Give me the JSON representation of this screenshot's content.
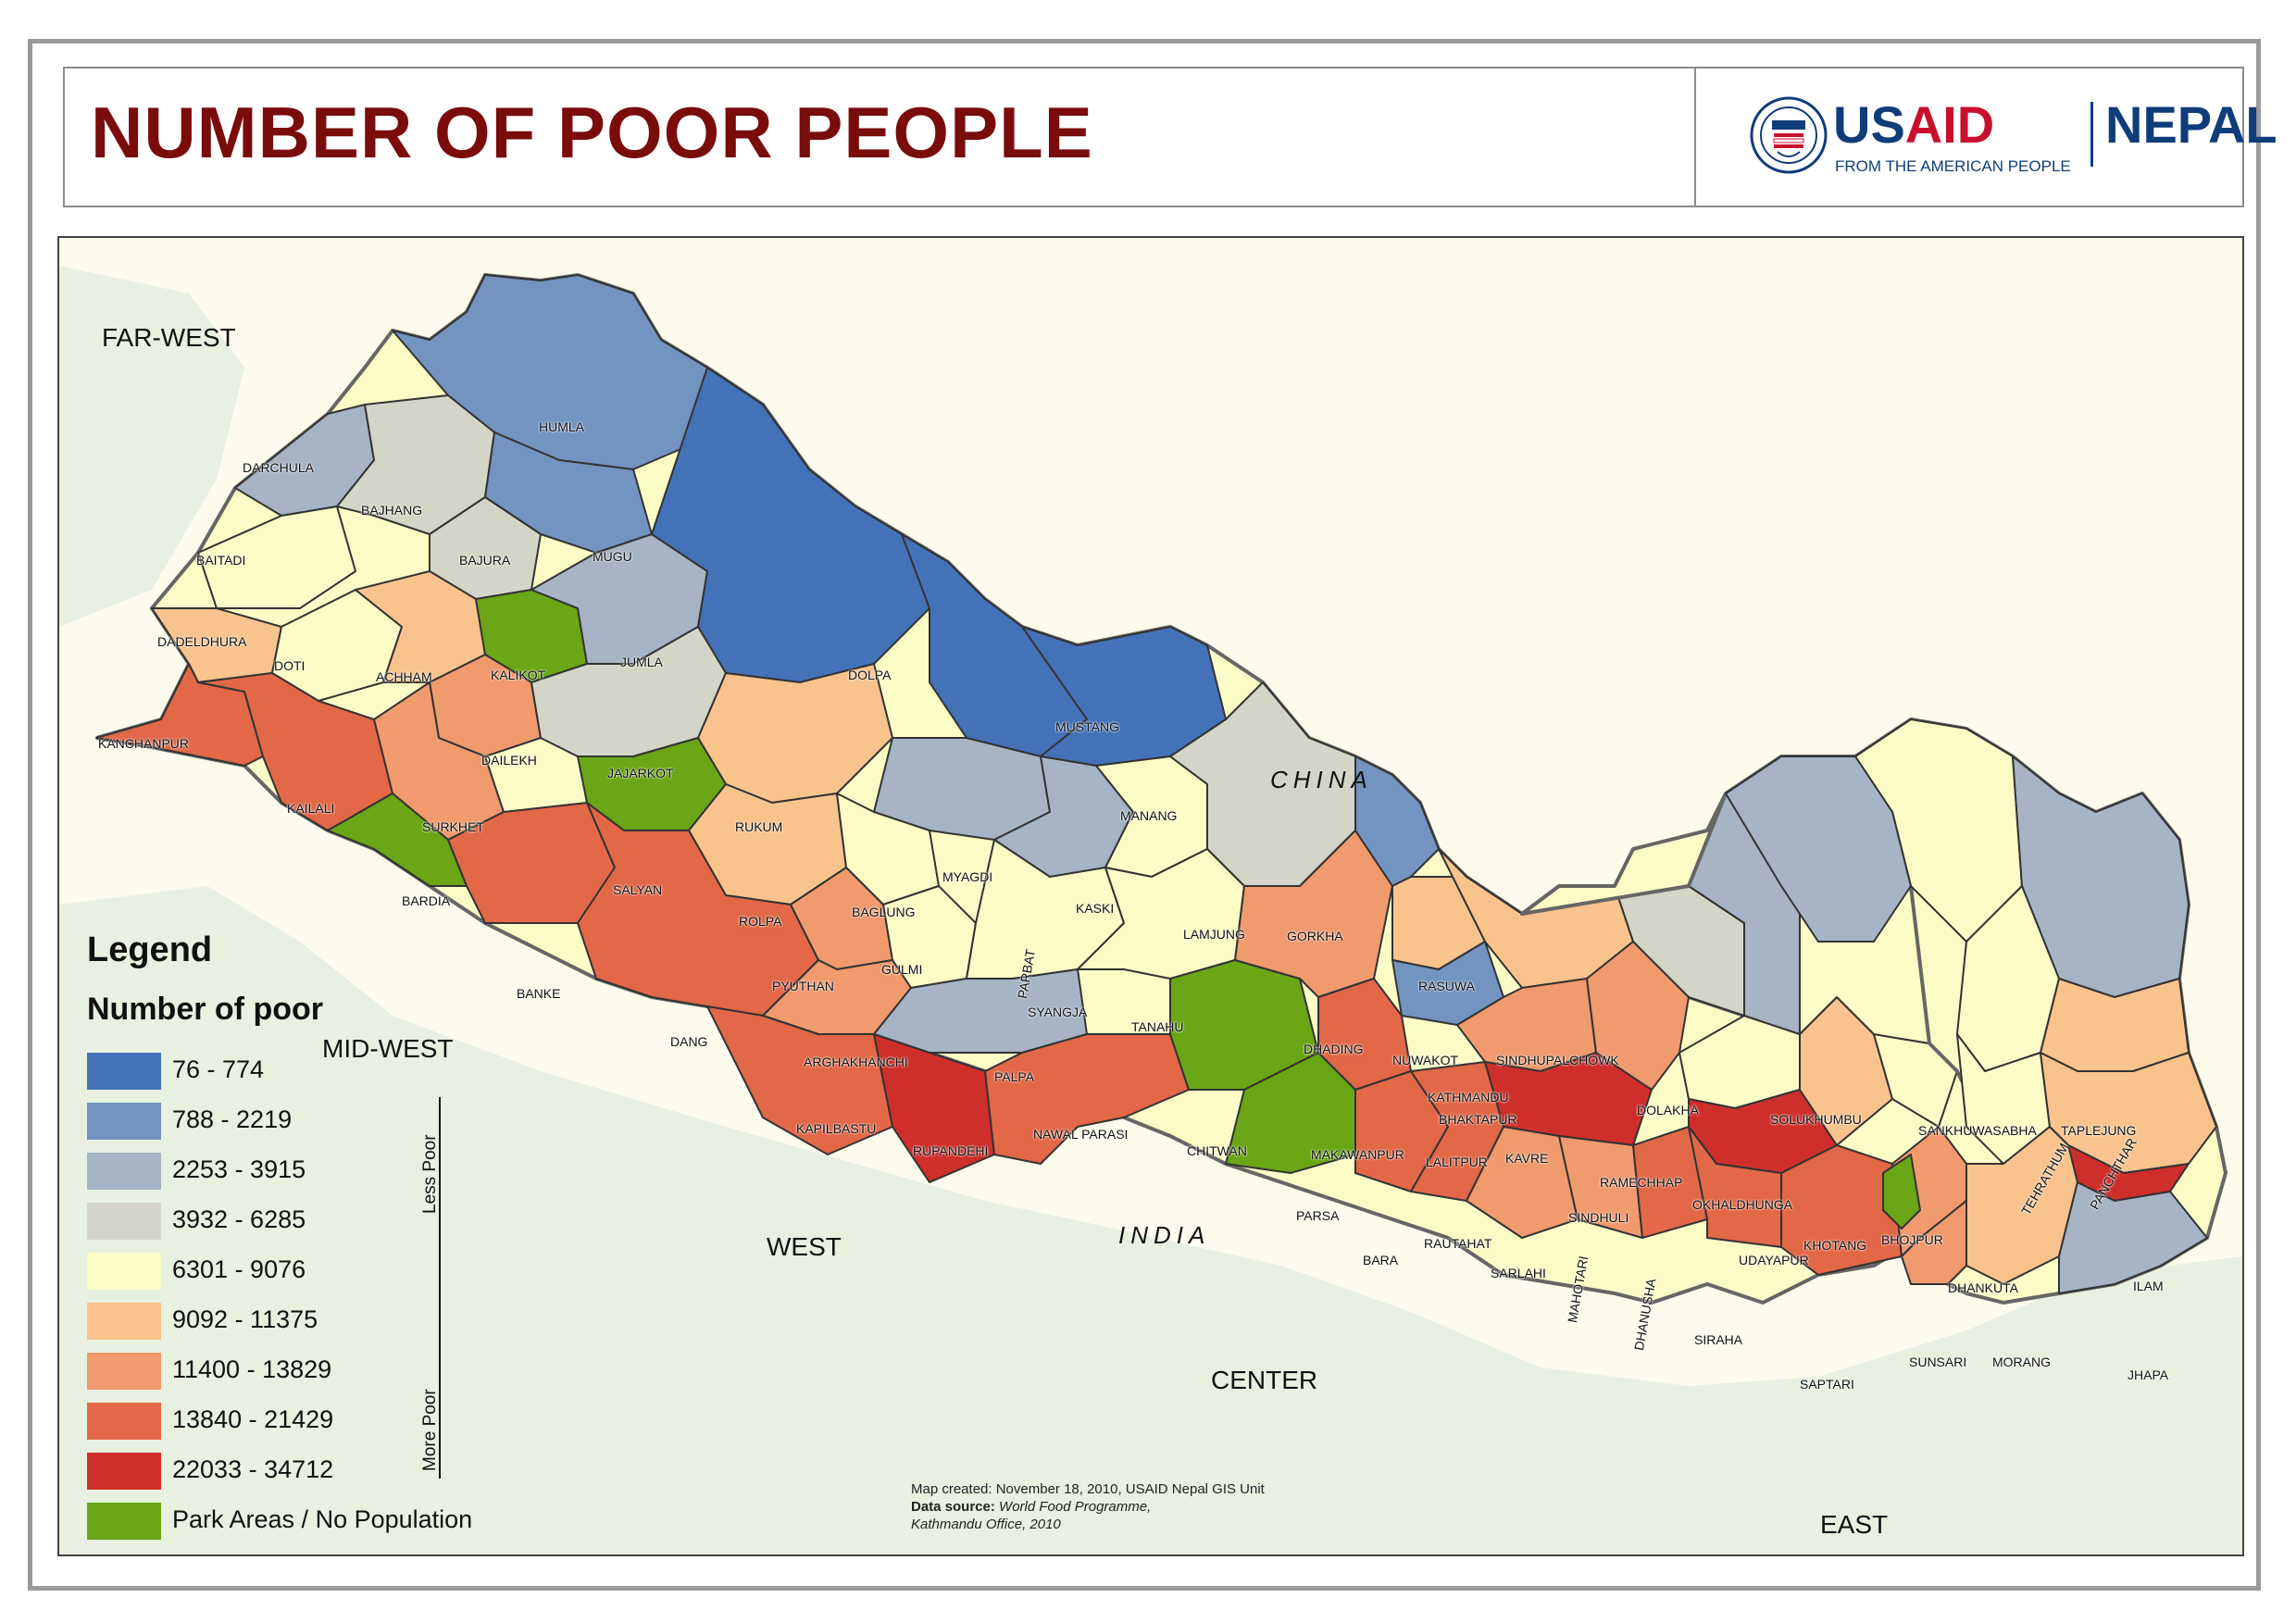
{
  "header": {
    "title": "NUMBER OF POOR PEOPLE",
    "logo_usaid_usa": "US",
    "logo_usaid_aid": "AID",
    "logo_tagline": "FROM THE AMERICAN PEOPLE",
    "logo_nepal": "NEPAL"
  },
  "regions": {
    "far_west": "FAR-WEST",
    "mid_west": "MID-WEST",
    "west": "WEST",
    "center": "CENTER",
    "east": "EAST"
  },
  "neighbors": {
    "china": "CHINA",
    "india": "INDIA"
  },
  "districts": [
    "HUMLA",
    "DARCHULA",
    "BAJHANG",
    "BAITADI",
    "BAJURA",
    "MUGU",
    "DADELDHURA",
    "DOTI",
    "ACHHAM",
    "KALIKOT",
    "JUMLA",
    "DOLPA",
    "MUSTANG",
    "KANCHANPUR",
    "KAILALI",
    "DAILEKH",
    "JAJARKOT",
    "SURKHET",
    "MANANG",
    "RUKUM",
    "BARDIA",
    "SALYAN",
    "MYAGDI",
    "ROLPA",
    "BAGLUNG",
    "KASKI",
    "LAMJUNG",
    "GORKHA",
    "BANKE",
    "GULMI",
    "PARBAT",
    "PYUTHAN",
    "RASUWA",
    "DANG",
    "SYANGJA",
    "TANAHU",
    "DHADING",
    "NUWAKOT",
    "SINDHUPALCHOWK",
    "ARGHAKHANCHI",
    "PALPA",
    "KATHMANDU",
    "BHAKTAPUR",
    "DOLAKHA",
    "SOLUKHUMBU",
    "SANKHUWASABHA",
    "TAPLEJUNG",
    "KAPILBASTU",
    "NAWAL PARASI",
    "RUPANDEHI",
    "CHITWAN",
    "MAKAWANPUR",
    "LALITPUR",
    "KAVRE",
    "RAMECHHAP",
    "PARSA",
    "SINDHULI",
    "OKHALDHUNGA",
    "TEHRATHUM",
    "PANCHTHAR",
    "BARA",
    "RAUTAHAT",
    "SARLAHI",
    "KHOTANG",
    "BHOJPUR",
    "MAHOTARI",
    "DHANUSHA",
    "UDAYAPUR",
    "DHANKUTA",
    "ILAM",
    "SIRAHA",
    "SAPTARI",
    "SUNSARI",
    "MORANG",
    "JHAPA"
  ],
  "legend": {
    "title": "Legend",
    "subtitle": "Number of poor",
    "less_poor": "Less Poor",
    "more_poor": "More Poor",
    "classes": [
      {
        "label": "76 - 774",
        "color": "#4472b8"
      },
      {
        "label": "788 - 2219",
        "color": "#7393c0"
      },
      {
        "label": "2253 - 3915",
        "color": "#a6b4c5"
      },
      {
        "label": "3932 - 6285",
        "color": "#d3d6c6"
      },
      {
        "label": "6301 - 9076",
        "color": "#fbfbc6"
      },
      {
        "label": "9092 - 11375",
        "color": "#f9c38e"
      },
      {
        "label": "11400 - 13829",
        "color": "#f09a6e"
      },
      {
        "label": "13840 - 21429",
        "color": "#e26848"
      },
      {
        "label": "22033 - 34712",
        "color": "#cf2f2a"
      },
      {
        "label": "Park Areas / No Population",
        "color": "#6aa615"
      }
    ]
  },
  "credits": {
    "line1": "Map created: November 18, 2010, USAID Nepal GIS Unit",
    "source_label": "Data source:",
    "source_value": "World Food Programme,",
    "line3": "Kathmandu Office,  2010"
  }
}
